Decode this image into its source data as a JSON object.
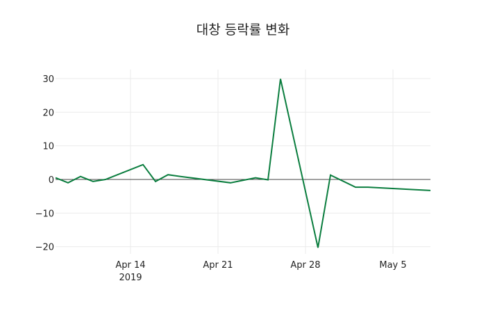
{
  "chart_data": {
    "type": "line",
    "title": "대창 등락률 변화",
    "xlabel": "",
    "ylabel": "",
    "x": [
      "2019-04-08",
      "2019-04-09",
      "2019-04-10",
      "2019-04-11",
      "2019-04-12",
      "2019-04-15",
      "2019-04-16",
      "2019-04-17",
      "2019-04-18",
      "2019-04-22",
      "2019-04-24",
      "2019-04-25",
      "2019-04-26",
      "2019-04-29",
      "2019-04-30",
      "2019-05-02",
      "2019-05-03",
      "2019-05-08"
    ],
    "series": [
      {
        "name": "등락률",
        "color": "#0a7d3e",
        "values": [
          0.5,
          -1.0,
          0.9,
          -0.6,
          0.0,
          4.4,
          -0.6,
          1.4,
          0.9,
          -1.0,
          0.5,
          -0.1,
          29.9,
          -20.3,
          1.3,
          -2.3,
          -2.3,
          -3.3
        ]
      }
    ],
    "ylim": [
      -22.5,
      33
    ],
    "yticks": [
      30,
      20,
      10,
      0,
      -10,
      -20
    ],
    "ytick_labels": [
      "30",
      "20",
      "10",
      "0",
      "−10",
      "−20"
    ],
    "xticks": [
      "2019-04-14",
      "2019-04-21",
      "2019-04-28",
      "2019-05-05"
    ],
    "xtick_labels": [
      "Apr 14",
      "Apr 21",
      "Apr 28",
      "May 5"
    ],
    "xtick_year_label": "2019",
    "grid": true,
    "zero_line": true,
    "legend": "none"
  }
}
